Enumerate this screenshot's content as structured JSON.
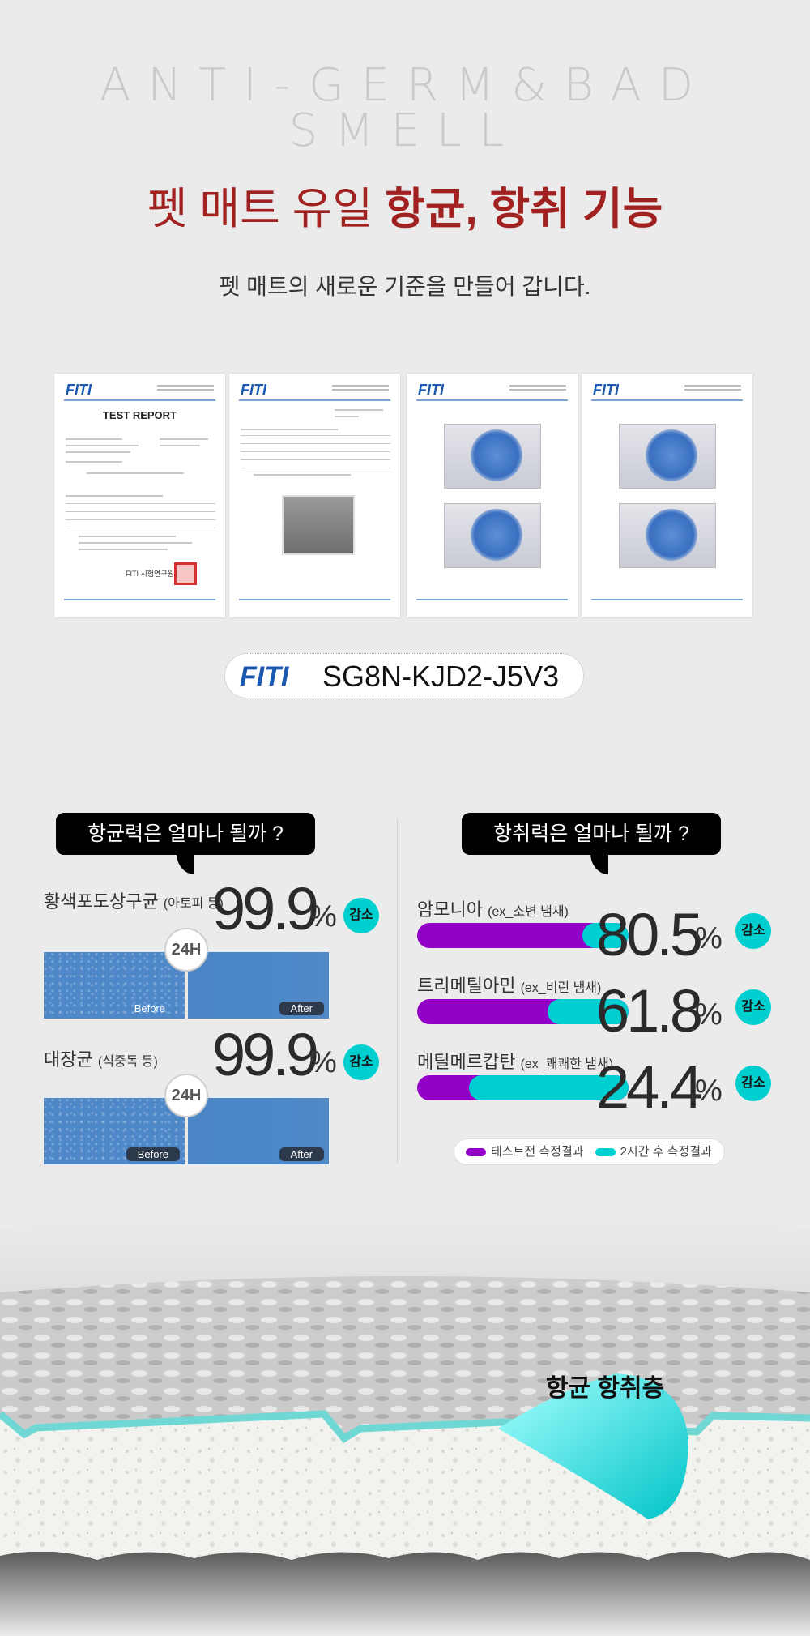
{
  "header": {
    "eng_title": "ANTI-GERM&BAD SMELL",
    "headline_plain": "펫 매트 유일 ",
    "headline_bold": "항균, 항취 기능",
    "subtitle": "펫 매트의 새로운 기준을 만들어 갑니다."
  },
  "documents": [
    {
      "logo": "FITI",
      "title": "TEST REPORT",
      "signature": "FITI 시험연구원장"
    },
    {
      "logo": "FITI"
    },
    {
      "logo": "FITI"
    },
    {
      "logo": "FITI"
    }
  ],
  "certificate": {
    "logo": "FITI",
    "code": "SG8N-KJD2-J5V3"
  },
  "antibacterial": {
    "question": "항균력은 얼마나 될까 ?",
    "items": [
      {
        "name": "황색포도상구균",
        "note": "(아토피 등)",
        "value": "99.9",
        "unit": "%",
        "badge": "감소",
        "interval": "24H",
        "before": "Before",
        "after": "After"
      },
      {
        "name": "대장균",
        "note": "(식중독 등)",
        "value": "99.9",
        "unit": "%",
        "badge": "감소",
        "interval": "24H",
        "before": "Before",
        "after": "After"
      }
    ]
  },
  "deodorant": {
    "question": "항취력은 얼마나 될까 ?",
    "items": [
      {
        "name": "암모니아",
        "note": "(ex_소변 냄새)",
        "value": "80.5",
        "unit": "%",
        "badge": "감소",
        "reduction_pct": 80.5
      },
      {
        "name": "트리메틸아민",
        "note": "(ex_비린 냄새)",
        "value": "61.8",
        "unit": "%",
        "badge": "감소",
        "reduction_pct": 61.8
      },
      {
        "name": "메틸메르캅탄",
        "note": "(ex_쾌쾌한 냄새)",
        "value": "24.4",
        "unit": "%",
        "badge": "감소",
        "reduction_pct": 24.4
      }
    ],
    "legend": {
      "before": "테스트전 측정결과",
      "after": "2시간 후 측정결과"
    },
    "colors": {
      "before": "#9300c8",
      "after": "#00cfd2"
    }
  },
  "mat": {
    "layer_label": "항균 항취층"
  }
}
